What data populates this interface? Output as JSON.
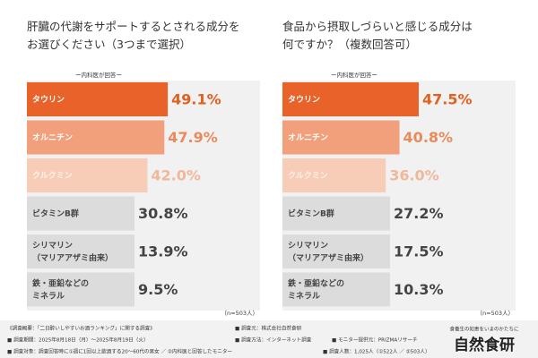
{
  "chart_data": [
    {
      "type": "barh",
      "title": "肝臓の代謝をサポートするとされる成分を\nお選びください（3つまで選択）",
      "subtitle": "ー内科医が回答ー",
      "categories": [
        "タウリン",
        "オルニチン",
        "クルクミン",
        "ビタミンB群",
        "シリマリン\n（マリアアザミ由来）",
        "鉄・亜鉛などの\nミネラル"
      ],
      "values": [
        49.1,
        47.9,
        42.0,
        30.8,
        13.9,
        9.5
      ],
      "value_labels": [
        "49.1%",
        "47.9%",
        "42.0%",
        "30.8%",
        "13.9%",
        "9.5%"
      ],
      "colors": [
        "#e8622a",
        "#f2a07c",
        "#f8cdb7",
        "#dcdcdc",
        "#dcdcdc",
        "#dcdcdc"
      ],
      "xlim": [
        0,
        50
      ],
      "note": "（n=503人）"
    },
    {
      "type": "barh",
      "title": "食品から摂取しづらいと感じる成分は\n何ですか？（複数回答可）",
      "subtitle": "ー内科医が回答ー",
      "categories": [
        "タウリン",
        "オルニチン",
        "クルクミン",
        "ビタミンB群",
        "シリマリン\n（マリアアザミ由来）",
        "鉄・亜鉛などの\nミネラル"
      ],
      "values": [
        47.5,
        40.8,
        36.0,
        27.2,
        17.5,
        10.3
      ],
      "value_labels": [
        "47.5%",
        "40.8%",
        "36.0%",
        "27.2%",
        "17.5%",
        "10.3%"
      ],
      "colors": [
        "#e8622a",
        "#f2a07c",
        "#f8cdb7",
        "#dcdcdc",
        "#dcdcdc",
        "#dcdcdc"
      ],
      "xlim": [
        0,
        50
      ],
      "note": "（n=503人）"
    }
  ],
  "footer": {
    "lines": [
      [
        "《調査概要：「二日酔いしやすいお酒ランキング」に関する調査》",
        "■ 調査元：株式会社自然食研"
      ],
      [
        "■ 調査期間：2025年8月18日（月）〜2025年8月19日（火）",
        "■ 調査方法：インターネット調査",
        "■ モニター提供元：PRIZMAリサーチ"
      ],
      [
        "■ 調査対象：調査回答時に①週に1回以上飲酒する20〜60代の男女 ／ ②内科医と回答したモニター",
        "■ 調査人数：1,025人（①522人 ／ ②503人）"
      ]
    ],
    "tagline": "食養生の知恵をいまのかたちに",
    "logo": "自然食研"
  }
}
